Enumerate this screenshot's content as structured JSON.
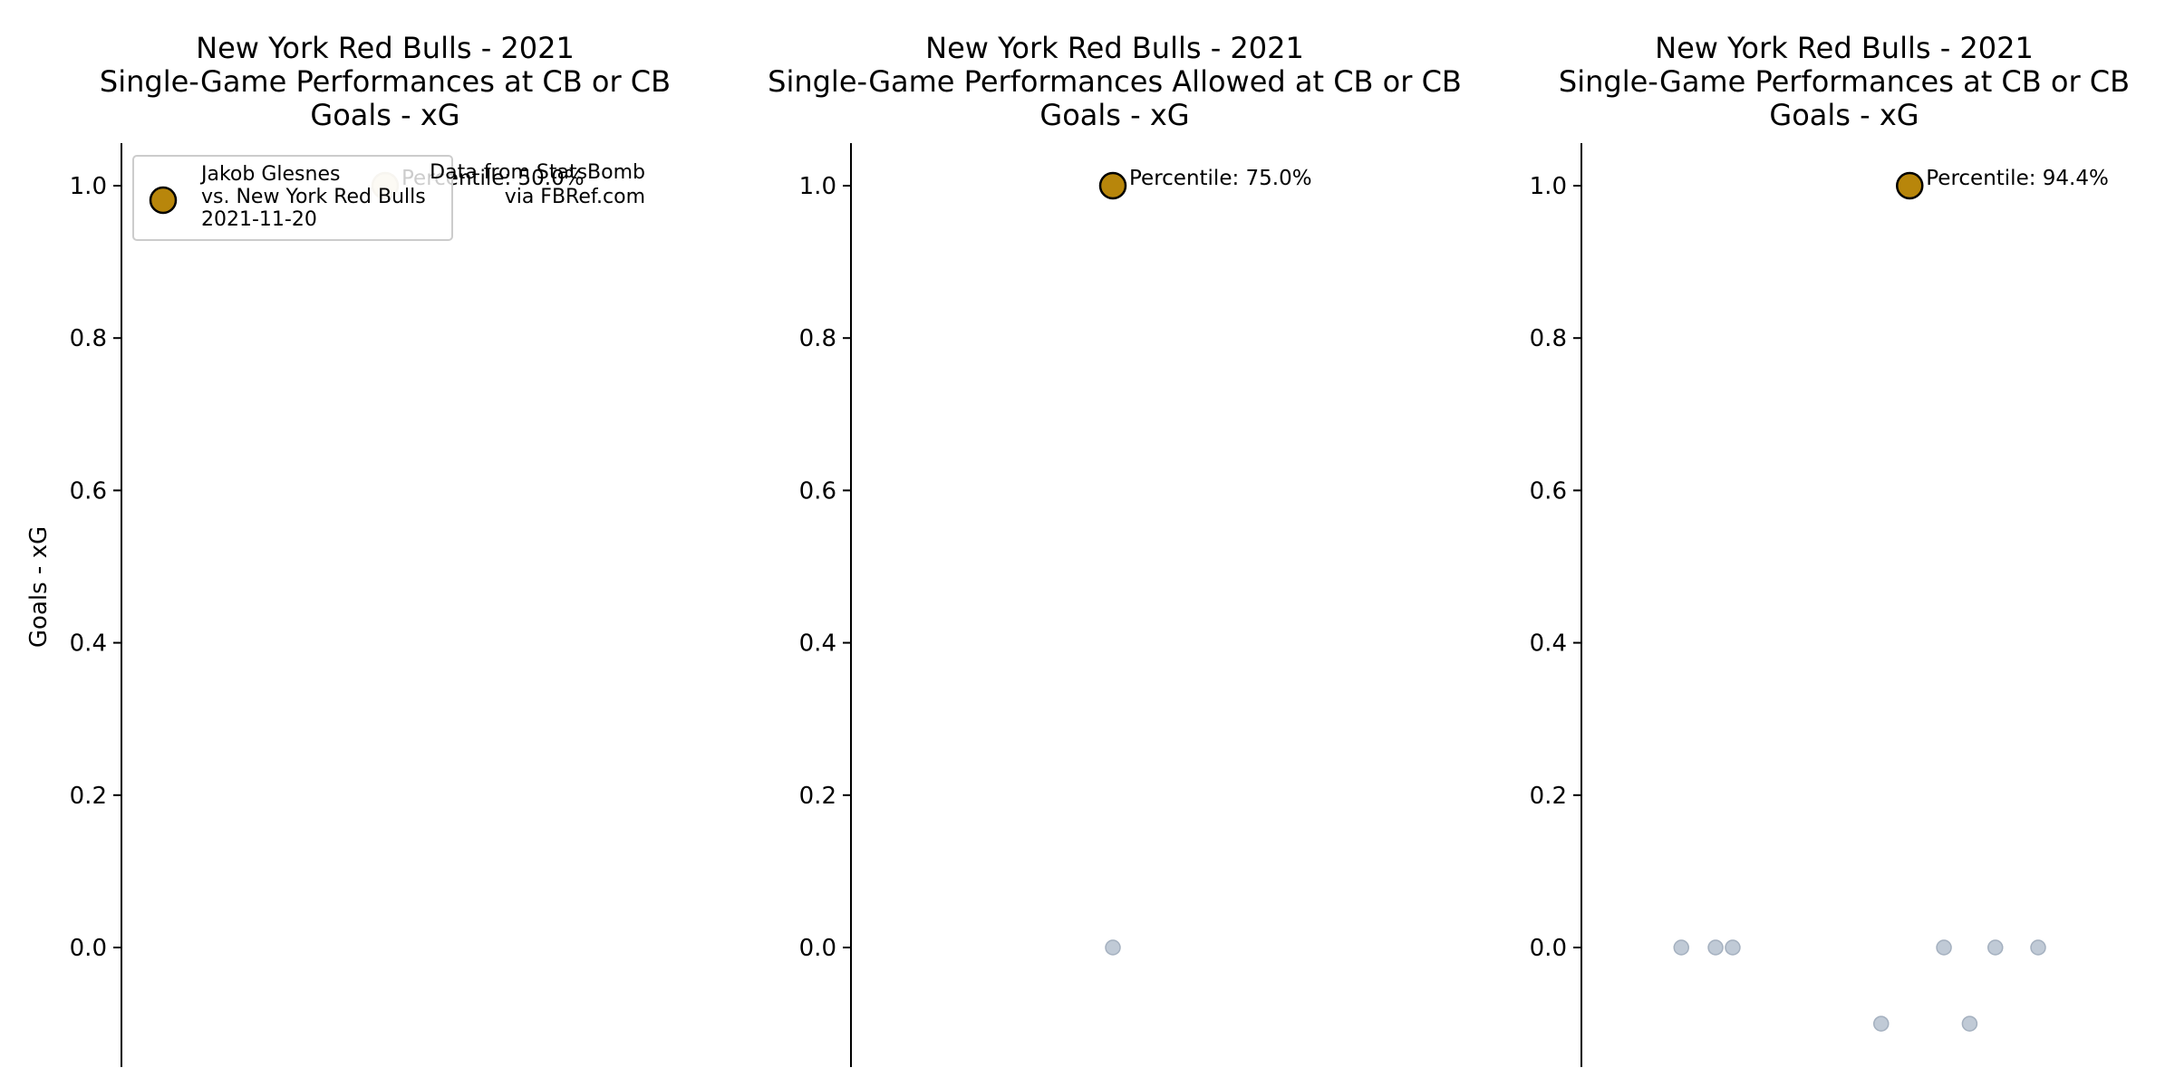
{
  "colors": {
    "highlight_fill": "#b8860b",
    "highlight_edge": "#000000",
    "other_fill": "#c0cad6",
    "other_edge": "#a4b0bf",
    "faded_fill": "#ede3c6",
    "faded_edge": "#d7ceb6",
    "axis": "#000000",
    "background": "#ffffff"
  },
  "legend": {
    "player": "Jakob Glesnes",
    "opponent": "vs. New York Red Bulls",
    "date": "2021-11-20"
  },
  "credit": {
    "line1": "Data from StatsBomb",
    "line2": "via FBRef.com"
  },
  "chart_data": [
    {
      "type": "scatter",
      "title": [
        "New York Red Bulls - 2021",
        "Single-Game Performances at CB or CB",
        "Goals - xG"
      ],
      "ylabel": "Goals - xG",
      "ylim": [
        -0.15,
        1.06
      ],
      "yticks": [
        "0.0",
        "0.2",
        "0.4",
        "0.6",
        "0.8",
        "1.0"
      ],
      "xlim": [
        -1,
        1
      ],
      "grid": false,
      "highlight": {
        "x": 0,
        "y": 1.0,
        "faded": true
      },
      "others": [],
      "annotation": "Percentile: 50.0%"
    },
    {
      "type": "scatter",
      "title": [
        "New York Red Bulls - 2021",
        "Single-Game Performances Allowed at CB or CB",
        "Goals - xG"
      ],
      "ylabel": "",
      "ylim": [
        -0.15,
        1.06
      ],
      "yticks": [
        "0.0",
        "0.2",
        "0.4",
        "0.6",
        "0.8",
        "1.0"
      ],
      "xlim": [
        -1,
        1
      ],
      "grid": false,
      "highlight": {
        "x": 0,
        "y": 1.0,
        "faded": false
      },
      "others": [
        {
          "x": 0,
          "y": 0.0
        }
      ],
      "annotation": "Percentile: 75.0%"
    },
    {
      "type": "scatter",
      "title": [
        "New York Red Bulls - 2021",
        "Single-Game Performances at CB or CB",
        "Goals - xG"
      ],
      "ylabel": "",
      "ylim": [
        -0.15,
        1.06
      ],
      "yticks": [
        "0.0",
        "0.2",
        "0.4",
        "0.6",
        "0.8",
        "1.0"
      ],
      "xlim": [
        -1,
        1
      ],
      "grid": false,
      "highlight": {
        "x": 0.15,
        "y": 1.0,
        "faded": false
      },
      "others": [
        {
          "x": 0.15,
          "y": 1.0
        },
        {
          "x": -0.65,
          "y": 0.0
        },
        {
          "x": -0.53,
          "y": 0.0
        },
        {
          "x": -0.47,
          "y": 0.0
        },
        {
          "x": 0.27,
          "y": 0.0
        },
        {
          "x": 0.45,
          "y": 0.0
        },
        {
          "x": 0.6,
          "y": 0.0
        },
        {
          "x": 0.05,
          "y": -0.1
        },
        {
          "x": 0.36,
          "y": -0.1
        }
      ],
      "annotation": "Percentile: 94.4%"
    }
  ]
}
